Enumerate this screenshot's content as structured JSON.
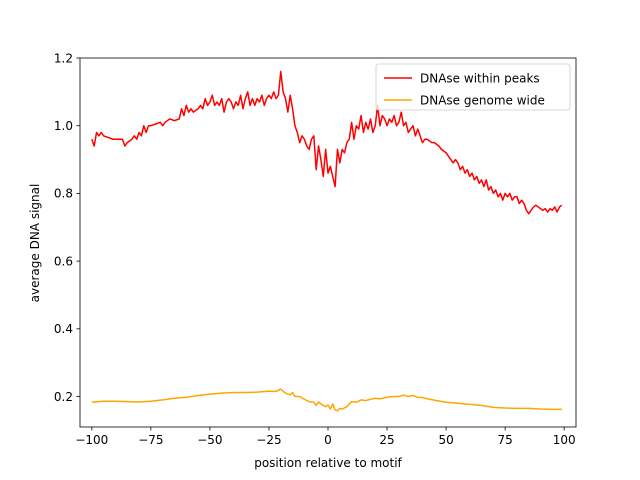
{
  "chart_data": {
    "type": "line",
    "xlabel": "position relative to motif",
    "ylabel": "average DNA signal",
    "xlim": [
      -105,
      105
    ],
    "ylim": [
      0.11,
      1.2
    ],
    "xticks": [
      -100,
      -75,
      -50,
      -25,
      0,
      25,
      50,
      75,
      100
    ],
    "yticks": [
      0.2,
      0.4,
      0.6,
      0.8,
      1.0,
      1.2
    ],
    "xtick_labels": [
      "−100",
      "−75",
      "−50",
      "−25",
      "0",
      "25",
      "50",
      "75",
      "100"
    ],
    "ytick_labels": [
      "0.2",
      "0.4",
      "0.6",
      "0.8",
      "1.0",
      "1.2"
    ],
    "grid": false,
    "legend_position": "top-right",
    "series": [
      {
        "name": "DNAse within peaks",
        "color": "#ff0000",
        "points": [
          [
            -100,
            0.96
          ],
          [
            -99,
            0.94
          ],
          [
            -98,
            0.98
          ],
          [
            -97,
            0.97
          ],
          [
            -96,
            0.98
          ],
          [
            -95,
            0.97
          ],
          [
            -93,
            0.965
          ],
          [
            -91,
            0.96
          ],
          [
            -89,
            0.96
          ],
          [
            -87,
            0.96
          ],
          [
            -86,
            0.94
          ],
          [
            -85,
            0.95
          ],
          [
            -83,
            0.96
          ],
          [
            -82,
            0.97
          ],
          [
            -81,
            0.96
          ],
          [
            -80,
            0.98
          ],
          [
            -79,
            0.97
          ],
          [
            -78,
            1.0
          ],
          [
            -77,
            0.98
          ],
          [
            -76,
            1.0
          ],
          [
            -75,
            1.0
          ],
          [
            -73,
            1.005
          ],
          [
            -71,
            1.01
          ],
          [
            -70,
            1.0
          ],
          [
            -69,
            1.01
          ],
          [
            -67,
            1.02
          ],
          [
            -65,
            1.015
          ],
          [
            -63,
            1.02
          ],
          [
            -62,
            1.05
          ],
          [
            -61,
            1.03
          ],
          [
            -60,
            1.06
          ],
          [
            -59,
            1.04
          ],
          [
            -58,
            1.05
          ],
          [
            -57,
            1.04
          ],
          [
            -55,
            1.05
          ],
          [
            -54,
            1.06
          ],
          [
            -53,
            1.05
          ],
          [
            -52,
            1.08
          ],
          [
            -51,
            1.06
          ],
          [
            -50,
            1.07
          ],
          [
            -49,
            1.09
          ],
          [
            -48,
            1.06
          ],
          [
            -47,
            1.07
          ],
          [
            -46,
            1.06
          ],
          [
            -45,
            1.08
          ],
          [
            -44,
            1.04
          ],
          [
            -43,
            1.07
          ],
          [
            -42,
            1.08
          ],
          [
            -41,
            1.07
          ],
          [
            -40,
            1.05
          ],
          [
            -39,
            1.07
          ],
          [
            -38,
            1.06
          ],
          [
            -37,
            1.09
          ],
          [
            -36,
            1.05
          ],
          [
            -35,
            1.08
          ],
          [
            -34,
            1.1
          ],
          [
            -33,
            1.06
          ],
          [
            -32,
            1.08
          ],
          [
            -31,
            1.06
          ],
          [
            -30,
            1.08
          ],
          [
            -29,
            1.07
          ],
          [
            -28,
            1.09
          ],
          [
            -27,
            1.06
          ],
          [
            -26,
            1.08
          ],
          [
            -25,
            1.09
          ],
          [
            -24,
            1.08
          ],
          [
            -23,
            1.1
          ],
          [
            -22,
            1.08
          ],
          [
            -21,
            1.09
          ],
          [
            -20,
            1.16
          ],
          [
            -19,
            1.1
          ],
          [
            -18,
            1.08
          ],
          [
            -17,
            1.04
          ],
          [
            -16,
            1.09
          ],
          [
            -15,
            1.05
          ],
          [
            -14,
            1.0
          ],
          [
            -13,
            0.98
          ],
          [
            -12,
            0.95
          ],
          [
            -11,
            0.97
          ],
          [
            -10,
            0.96
          ],
          [
            -9,
            0.94
          ],
          [
            -8,
            0.93
          ],
          [
            -7,
            0.96
          ],
          [
            -6,
            0.97
          ],
          [
            -5,
            0.87
          ],
          [
            -4,
            0.94
          ],
          [
            -3,
            0.9
          ],
          [
            -2,
            0.85
          ],
          [
            -1,
            0.93
          ],
          [
            0,
            0.86
          ],
          [
            1,
            0.88
          ],
          [
            2,
            0.85
          ],
          [
            3,
            0.82
          ],
          [
            4,
            0.93
          ],
          [
            5,
            0.89
          ],
          [
            6,
            0.93
          ],
          [
            7,
            0.92
          ],
          [
            8,
            0.95
          ],
          [
            9,
            0.96
          ],
          [
            10,
            1.01
          ],
          [
            11,
            0.96
          ],
          [
            12,
            1.0
          ],
          [
            13,
            0.99
          ],
          [
            14,
            1.03
          ],
          [
            15,
            0.98
          ],
          [
            16,
            1.01
          ],
          [
            17,
            0.99
          ],
          [
            18,
            1.02
          ],
          [
            19,
            0.98
          ],
          [
            20,
            1.0
          ],
          [
            21,
            1.06
          ],
          [
            22,
            1.0
          ],
          [
            23,
            1.03
          ],
          [
            24,
            1.02
          ],
          [
            25,
            1.0
          ],
          [
            26,
            1.02
          ],
          [
            27,
            1.01
          ],
          [
            28,
            1.03
          ],
          [
            29,
            1.0
          ],
          [
            30,
            1.01
          ],
          [
            31,
            1.04
          ],
          [
            32,
            1.0
          ],
          [
            33,
            1.01
          ],
          [
            34,
            0.98
          ],
          [
            35,
            0.99
          ],
          [
            36,
            1.0
          ],
          [
            37,
            0.97
          ],
          [
            38,
            0.99
          ],
          [
            39,
            0.97
          ],
          [
            40,
            0.95
          ],
          [
            41,
            0.96
          ],
          [
            42,
            0.96
          ],
          [
            44,
            0.95
          ],
          [
            45,
            0.95
          ],
          [
            47,
            0.94
          ],
          [
            48,
            0.93
          ],
          [
            49,
            0.925
          ],
          [
            50,
            0.92
          ],
          [
            51,
            0.91
          ],
          [
            52,
            0.9
          ],
          [
            53,
            0.89
          ],
          [
            54,
            0.9
          ],
          [
            55,
            0.89
          ],
          [
            56,
            0.87
          ],
          [
            57,
            0.88
          ],
          [
            58,
            0.86
          ],
          [
            59,
            0.87
          ],
          [
            60,
            0.85
          ],
          [
            61,
            0.86
          ],
          [
            62,
            0.84
          ],
          [
            63,
            0.85
          ],
          [
            64,
            0.83
          ],
          [
            65,
            0.84
          ],
          [
            66,
            0.82
          ],
          [
            67,
            0.84
          ],
          [
            68,
            0.81
          ],
          [
            69,
            0.82
          ],
          [
            70,
            0.8
          ],
          [
            71,
            0.81
          ],
          [
            72,
            0.79
          ],
          [
            73,
            0.8
          ],
          [
            74,
            0.78
          ],
          [
            75,
            0.8
          ],
          [
            76,
            0.79
          ],
          [
            77,
            0.8
          ],
          [
            78,
            0.78
          ],
          [
            79,
            0.79
          ],
          [
            80,
            0.79
          ],
          [
            81,
            0.77
          ],
          [
            82,
            0.78
          ],
          [
            83,
            0.77
          ],
          [
            84,
            0.75
          ],
          [
            85,
            0.74
          ],
          [
            86,
            0.75
          ],
          [
            87,
            0.76
          ],
          [
            88,
            0.765
          ],
          [
            89,
            0.76
          ],
          [
            90,
            0.755
          ],
          [
            91,
            0.75
          ],
          [
            92,
            0.755
          ],
          [
            93,
            0.745
          ],
          [
            94,
            0.755
          ],
          [
            95,
            0.75
          ],
          [
            96,
            0.76
          ],
          [
            97,
            0.745
          ],
          [
            98,
            0.76
          ],
          [
            99,
            0.765
          ]
        ]
      },
      {
        "name": "DNAse genome wide",
        "color": "#ffa500",
        "points": [
          [
            -100,
            0.183
          ],
          [
            -95,
            0.186
          ],
          [
            -90,
            0.186
          ],
          [
            -85,
            0.185
          ],
          [
            -80,
            0.184
          ],
          [
            -75,
            0.186
          ],
          [
            -70,
            0.19
          ],
          [
            -65,
            0.195
          ],
          [
            -60,
            0.198
          ],
          [
            -55,
            0.203
          ],
          [
            -50,
            0.207
          ],
          [
            -45,
            0.21
          ],
          [
            -40,
            0.212
          ],
          [
            -35,
            0.212
          ],
          [
            -30,
            0.213
          ],
          [
            -25,
            0.216
          ],
          [
            -22,
            0.215
          ],
          [
            -20,
            0.222
          ],
          [
            -18,
            0.21
          ],
          [
            -16,
            0.205
          ],
          [
            -15,
            0.212
          ],
          [
            -14,
            0.2
          ],
          [
            -12,
            0.2
          ],
          [
            -10,
            0.192
          ],
          [
            -8,
            0.185
          ],
          [
            -6,
            0.183
          ],
          [
            -5,
            0.174
          ],
          [
            -4,
            0.184
          ],
          [
            -3,
            0.178
          ],
          [
            -1,
            0.17
          ],
          [
            0,
            0.175
          ],
          [
            1,
            0.163
          ],
          [
            2,
            0.178
          ],
          [
            3,
            0.16
          ],
          [
            4,
            0.158
          ],
          [
            5,
            0.165
          ],
          [
            6,
            0.163
          ],
          [
            8,
            0.17
          ],
          [
            10,
            0.185
          ],
          [
            12,
            0.183
          ],
          [
            14,
            0.19
          ],
          [
            16,
            0.188
          ],
          [
            18,
            0.192
          ],
          [
            20,
            0.195
          ],
          [
            22,
            0.193
          ],
          [
            25,
            0.198
          ],
          [
            28,
            0.2
          ],
          [
            30,
            0.2
          ],
          [
            32,
            0.204
          ],
          [
            34,
            0.2
          ],
          [
            36,
            0.203
          ],
          [
            38,
            0.198
          ],
          [
            40,
            0.197
          ],
          [
            43,
            0.192
          ],
          [
            46,
            0.188
          ],
          [
            50,
            0.183
          ],
          [
            55,
            0.18
          ],
          [
            60,
            0.177
          ],
          [
            65,
            0.174
          ],
          [
            70,
            0.168
          ],
          [
            75,
            0.166
          ],
          [
            80,
            0.165
          ],
          [
            85,
            0.165
          ],
          [
            90,
            0.163
          ],
          [
            95,
            0.162
          ],
          [
            99,
            0.162
          ]
        ]
      }
    ]
  }
}
